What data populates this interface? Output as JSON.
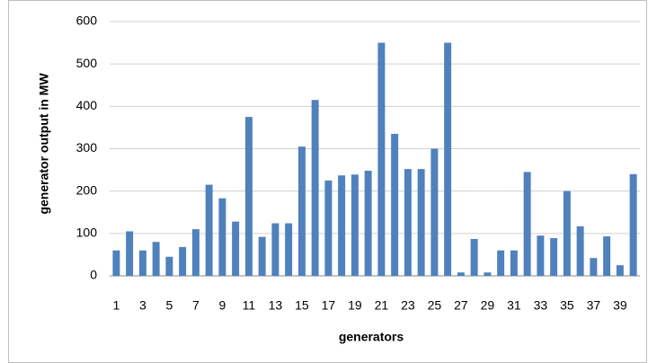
{
  "chart_data": {
    "type": "bar",
    "x_label": "generators",
    "y_label": "generator output in MW",
    "categories": [
      "1",
      null,
      "3",
      null,
      "5",
      null,
      "7",
      null,
      "9",
      null,
      "11",
      null,
      "13",
      null,
      "15",
      null,
      "17",
      null,
      "19",
      null,
      "21",
      null,
      "23",
      null,
      "25",
      null,
      "27",
      null,
      "29",
      null,
      "31",
      null,
      "33",
      null,
      "35",
      null,
      "37",
      null,
      "39",
      null
    ],
    "values": [
      60,
      105,
      60,
      80,
      45,
      68,
      110,
      215,
      183,
      128,
      375,
      92,
      124,
      124,
      305,
      415,
      225,
      237,
      239,
      248,
      550,
      335,
      252,
      252,
      300,
      550,
      8,
      87,
      8,
      60,
      60,
      245,
      95,
      89,
      200,
      117,
      42,
      93,
      25,
      240
    ],
    "color": "#4f81bd",
    "ylim": [
      0,
      600
    ],
    "yticks": [
      0,
      100,
      200,
      300,
      400,
      500,
      600
    ],
    "grid": true
  }
}
